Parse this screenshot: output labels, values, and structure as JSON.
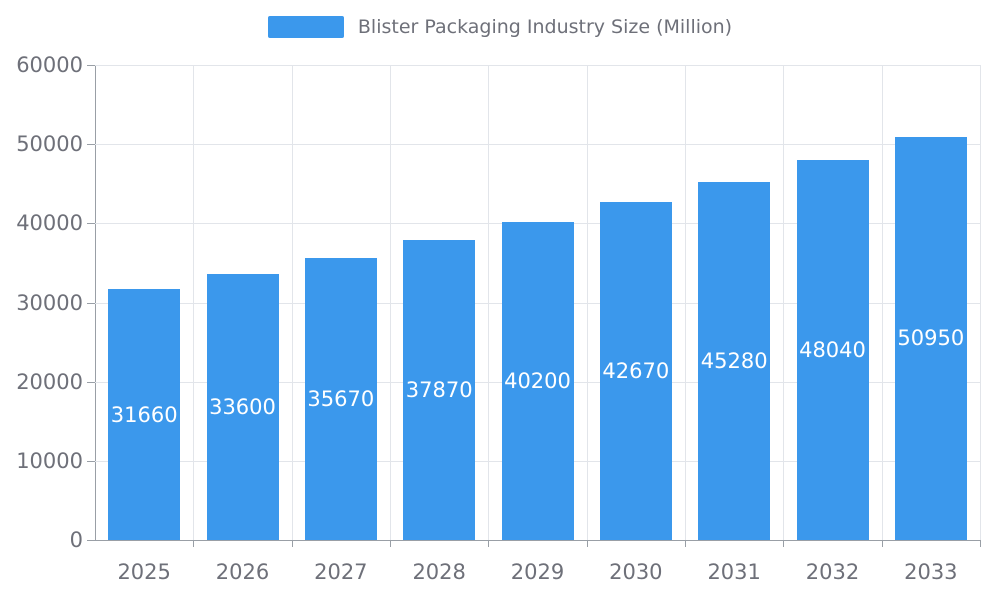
{
  "chart_data": {
    "type": "bar",
    "title": "Blister Packaging Industry Size (Million)",
    "categories": [
      "2025",
      "2026",
      "2027",
      "2028",
      "2029",
      "2030",
      "2031",
      "2032",
      "2033"
    ],
    "values": [
      31660,
      33600,
      35670,
      37870,
      40200,
      42670,
      45280,
      48040,
      50950
    ],
    "xlabel": "",
    "ylabel": "",
    "ylim": [
      0,
      60000
    ],
    "ytick_step": 10000,
    "ytick_labels": [
      "0",
      "10000",
      "20000",
      "30000",
      "40000",
      "50000",
      "60000"
    ],
    "grid": true,
    "legend_position": "top-center",
    "bar_color": "#3B98EC",
    "bar_label_color": "#FFFFFF",
    "axis_line_color": "#999FA6",
    "grid_color": "#E2E5EA",
    "tick_text_color": "#6E7079",
    "legend_text_color": "#6E7079"
  }
}
